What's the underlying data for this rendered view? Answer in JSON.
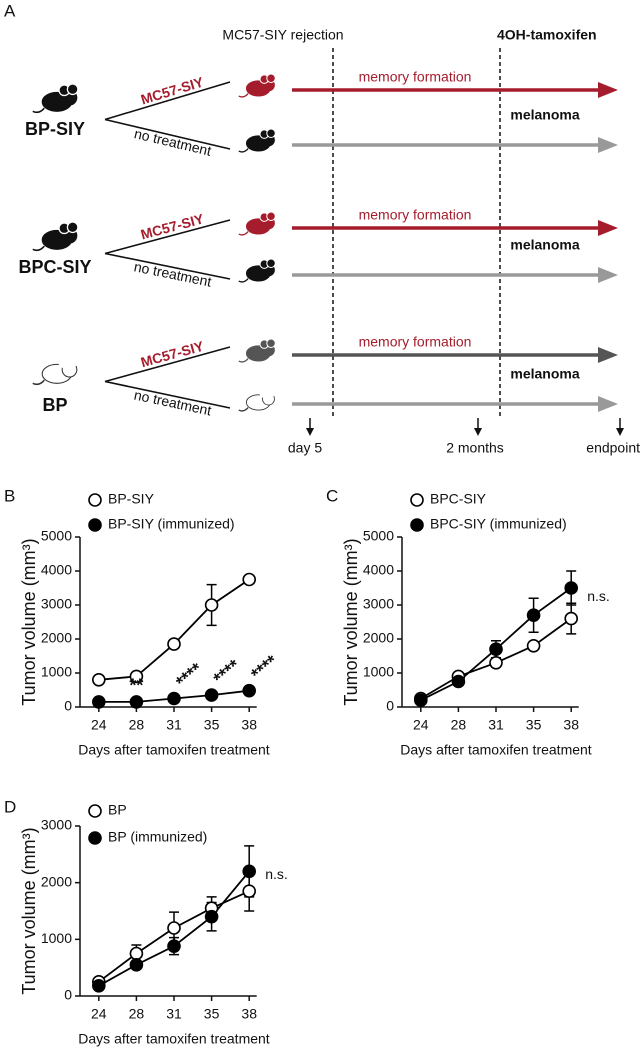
{
  "panel_a": {
    "label": "A",
    "header_left": "MC57-SIY rejection",
    "header_right": "4OH-tamoxifen",
    "groups": [
      {
        "name": "BP-SIY",
        "treated": "MC57-SIY",
        "untreated": "no treatment",
        "arrow_top": "memory formation",
        "arrow_bottom": "melanoma"
      },
      {
        "name": "BPC-SIY",
        "treated": "MC57-SIY",
        "untreated": "no treatment",
        "arrow_top": "memory formation",
        "arrow_bottom": "melanoma"
      },
      {
        "name": "BP",
        "treated": "MC57-SIY",
        "untreated": "no treatment",
        "arrow_top": "memory formation",
        "arrow_bottom": "melanoma"
      }
    ],
    "timeline": [
      "day 5",
      "2 months",
      "endpoint"
    ]
  },
  "chart_data": [
    {
      "type": "line",
      "panel": "B",
      "categories": [
        "24",
        "28",
        "31",
        "35",
        "38"
      ],
      "xlabel": "Days after tamoxifen treatment",
      "ylabel": "Tumor volume (mm³)",
      "ylim": [
        0,
        5000
      ],
      "yticks": [
        0,
        1000,
        2000,
        3000,
        4000,
        5000
      ],
      "series": [
        {
          "name": "BP-SIY",
          "color": "#000000",
          "marker": "open",
          "values": [
            800,
            900,
            1850,
            3000,
            3750
          ],
          "errors": [
            100,
            60,
            120,
            600,
            80
          ]
        },
        {
          "name": "BP-SIY (immunized)",
          "color": "#000000",
          "marker": "filled",
          "values": [
            150,
            150,
            250,
            350,
            480
          ],
          "errors": [
            30,
            30,
            50,
            100,
            40
          ]
        }
      ],
      "annotations": [
        null,
        "**",
        "****",
        "****",
        "****"
      ]
    },
    {
      "type": "line",
      "panel": "C",
      "categories": [
        "24",
        "28",
        "31",
        "35",
        "38"
      ],
      "xlabel": "Days after tamoxifen treatment",
      "ylabel": "Tumor volume (mm³)",
      "ylim": [
        0,
        5000
      ],
      "yticks": [
        0,
        1000,
        2000,
        3000,
        4000,
        5000
      ],
      "series": [
        {
          "name": "BPC-SIY",
          "color": "#000000",
          "marker": "open",
          "values": [
            250,
            900,
            1300,
            1800,
            2600
          ],
          "errors": [
            30,
            80,
            100,
            80,
            450
          ]
        },
        {
          "name": "BPC-SIY (immunized)",
          "color": "#000000",
          "marker": "filled",
          "values": [
            200,
            750,
            1700,
            2700,
            3500
          ],
          "errors": [
            30,
            100,
            250,
            500,
            500
          ]
        }
      ],
      "annotations": [
        null,
        null,
        null,
        null,
        "n.s."
      ]
    },
    {
      "type": "line",
      "panel": "D",
      "categories": [
        "24",
        "28",
        "31",
        "35",
        "38"
      ],
      "xlabel": "Days after tamoxifen treatment",
      "ylabel": "Tumor volume (mm³)",
      "ylim": [
        0,
        3000
      ],
      "yticks": [
        0,
        1000,
        2000,
        3000
      ],
      "series": [
        {
          "name": "BP",
          "color": "#000000",
          "marker": "open",
          "values": [
            250,
            750,
            1200,
            1550,
            1850
          ],
          "errors": [
            30,
            150,
            280,
            200,
            350
          ]
        },
        {
          "name": "BP  (immunized)",
          "color": "#000000",
          "marker": "filled",
          "values": [
            180,
            550,
            880,
            1400,
            2200
          ],
          "errors": [
            30,
            50,
            150,
            250,
            450
          ]
        }
      ],
      "annotations": [
        null,
        null,
        null,
        null,
        "n.s."
      ]
    }
  ]
}
